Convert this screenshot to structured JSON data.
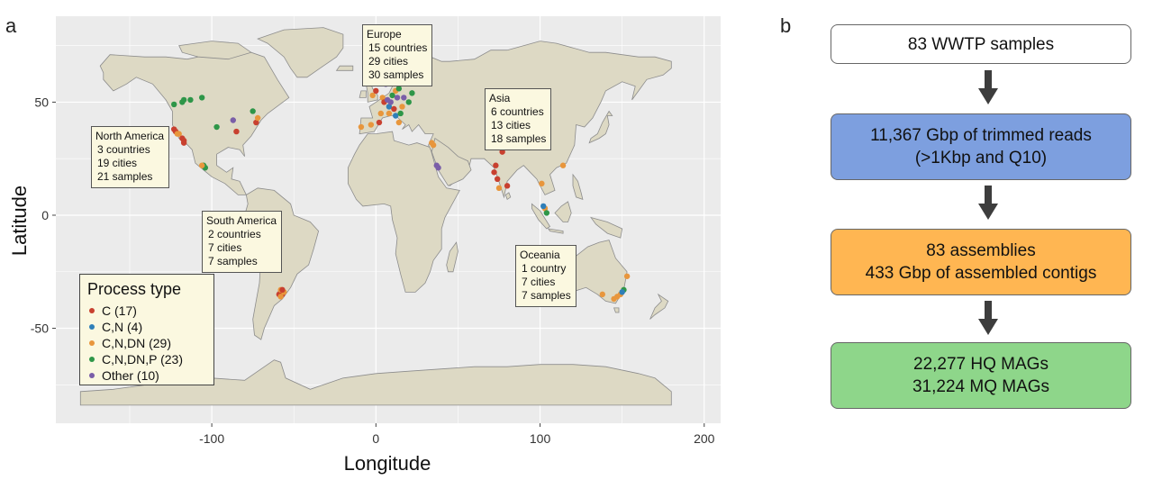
{
  "panel_a_label": "a",
  "panel_b_label": "b",
  "chart_data": [
    {
      "type": "scatter",
      "title": "",
      "xlabel": "Longitude",
      "ylabel": "Latitude",
      "xlim": [
        -195,
        210
      ],
      "ylim": [
        -92,
        88
      ],
      "x_ticks": [
        -100,
        0,
        100,
        200
      ],
      "y_ticks": [
        -50,
        0,
        50
      ],
      "x_tick_labels": [
        "-100",
        "0",
        "100",
        "200"
      ],
      "y_tick_labels": [
        "-50",
        "0",
        "50"
      ],
      "background": "#ebebeb",
      "land_color": "#ddd9c4",
      "grid": true,
      "legend": {
        "title": "Process type",
        "placement": "bottom-left",
        "entries": [
          {
            "key": "C",
            "label": "C (17)",
            "color": "#c8402f"
          },
          {
            "key": "CN",
            "label": "C,N (4)",
            "color": "#2f7fb9"
          },
          {
            "key": "CNDN",
            "label": "C,N,DN (29)",
            "color": "#e8963c"
          },
          {
            "key": "CNDNP",
            "label": "C,N,DN,P (23)",
            "color": "#2e9648"
          },
          {
            "key": "Other",
            "label": "Other (10)",
            "color": "#7a5ea8"
          }
        ]
      },
      "annotations": [
        {
          "region": "Europe",
          "lines": [
            "15 countries",
            "29 cities",
            "30 samples"
          ]
        },
        {
          "region": "Asia",
          "lines": [
            "6 countries",
            "13 cities",
            "18 samples"
          ]
        },
        {
          "region": "North America",
          "lines": [
            "3 countries",
            "19 cities",
            "21 samples"
          ]
        },
        {
          "region": "South America",
          "lines": [
            "2 countries",
            "7 cities",
            "7 samples"
          ]
        },
        {
          "region": "Oceania",
          "lines": [
            "1 country",
            "7 cities",
            "7 samples"
          ]
        }
      ],
      "points": [
        {
          "lon": -123,
          "lat": 49,
          "type": "CNDNP"
        },
        {
          "lon": -118,
          "lat": 50,
          "type": "CNDNP"
        },
        {
          "lon": -117,
          "lat": 51,
          "type": "CNDNP"
        },
        {
          "lon": -113,
          "lat": 51,
          "type": "CNDNP"
        },
        {
          "lon": -106,
          "lat": 52,
          "type": "CNDNP"
        },
        {
          "lon": -97,
          "lat": 39,
          "type": "CNDNP"
        },
        {
          "lon": -123,
          "lat": 38,
          "type": "C"
        },
        {
          "lon": -122,
          "lat": 37,
          "type": "C"
        },
        {
          "lon": -121,
          "lat": 36,
          "type": "CNDN"
        },
        {
          "lon": -120,
          "lat": 36,
          "type": "CNDN"
        },
        {
          "lon": -118,
          "lat": 34,
          "type": "C"
        },
        {
          "lon": -117,
          "lat": 33,
          "type": "C"
        },
        {
          "lon": -117,
          "lat": 32,
          "type": "C"
        },
        {
          "lon": -87,
          "lat": 42,
          "type": "Other"
        },
        {
          "lon": -85,
          "lat": 37,
          "type": "C"
        },
        {
          "lon": -75,
          "lat": 46,
          "type": "CNDNP"
        },
        {
          "lon": -73,
          "lat": 41,
          "type": "C"
        },
        {
          "lon": -72,
          "lat": 43,
          "type": "CNDN"
        },
        {
          "lon": -105,
          "lat": 22,
          "type": "CNDNP"
        },
        {
          "lon": -104,
          "lat": 21,
          "type": "CNDNP"
        },
        {
          "lon": -106,
          "lat": 22,
          "type": "CNDN"
        },
        {
          "lon": -58,
          "lat": -34,
          "type": "C"
        },
        {
          "lon": -57,
          "lat": -35,
          "type": "C"
        },
        {
          "lon": -59,
          "lat": -35,
          "type": "C"
        },
        {
          "lon": -56,
          "lat": -34,
          "type": "CNDN"
        },
        {
          "lon": -58,
          "lat": -33,
          "type": "CNDN"
        },
        {
          "lon": -57,
          "lat": -33,
          "type": "C"
        },
        {
          "lon": -58,
          "lat": -36,
          "type": "CNDN"
        },
        {
          "lon": -9,
          "lat": 39,
          "type": "CNDN"
        },
        {
          "lon": -3,
          "lat": 40,
          "type": "CNDN"
        },
        {
          "lon": 2,
          "lat": 41,
          "type": "C"
        },
        {
          "lon": 3,
          "lat": 45,
          "type": "CNDN"
        },
        {
          "lon": -2,
          "lat": 53,
          "type": "CNDN"
        },
        {
          "lon": 0,
          "lat": 55,
          "type": "C"
        },
        {
          "lon": 4,
          "lat": 52,
          "type": "CNDN"
        },
        {
          "lon": 5,
          "lat": 50,
          "type": "C"
        },
        {
          "lon": 7,
          "lat": 51,
          "type": "Other"
        },
        {
          "lon": 8,
          "lat": 48,
          "type": "CN"
        },
        {
          "lon": 9,
          "lat": 50,
          "type": "Other"
        },
        {
          "lon": 10,
          "lat": 53,
          "type": "CNDNP"
        },
        {
          "lon": 11,
          "lat": 47,
          "type": "C"
        },
        {
          "lon": 12,
          "lat": 55,
          "type": "CNDN"
        },
        {
          "lon": 13,
          "lat": 52,
          "type": "Other"
        },
        {
          "lon": 14,
          "lat": 56,
          "type": "CNDNP"
        },
        {
          "lon": 16,
          "lat": 48,
          "type": "CNDN"
        },
        {
          "lon": 18,
          "lat": 59,
          "type": "CNDN"
        },
        {
          "lon": 10,
          "lat": 63,
          "type": "CNDN"
        },
        {
          "lon": 20,
          "lat": 50,
          "type": "CNDNP"
        },
        {
          "lon": 24,
          "lat": 60,
          "type": "Other"
        },
        {
          "lon": 12,
          "lat": 44,
          "type": "CN"
        },
        {
          "lon": 14,
          "lat": 41,
          "type": "CNDN"
        },
        {
          "lon": 8,
          "lat": 45,
          "type": "CNDN"
        },
        {
          "lon": 15,
          "lat": 45,
          "type": "CNDNP"
        },
        {
          "lon": 6,
          "lat": 58,
          "type": "Other"
        },
        {
          "lon": 22,
          "lat": 54,
          "type": "CNDNP"
        },
        {
          "lon": 11,
          "lat": 59,
          "type": "Other"
        },
        {
          "lon": 17,
          "lat": 52,
          "type": "Other"
        },
        {
          "lon": 34,
          "lat": 32,
          "type": "CNDN"
        },
        {
          "lon": 35,
          "lat": 31,
          "type": "CNDN"
        },
        {
          "lon": 37,
          "lat": 22,
          "type": "Other"
        },
        {
          "lon": 38,
          "lat": 21,
          "type": "Other"
        },
        {
          "lon": 73,
          "lat": 22,
          "type": "C"
        },
        {
          "lon": 77,
          "lat": 28,
          "type": "C"
        },
        {
          "lon": 72,
          "lat": 19,
          "type": "C"
        },
        {
          "lon": 74,
          "lat": 16,
          "type": "C"
        },
        {
          "lon": 80,
          "lat": 13,
          "type": "C"
        },
        {
          "lon": 75,
          "lat": 12,
          "type": "CNDN"
        },
        {
          "lon": 101,
          "lat": 14,
          "type": "CNDN"
        },
        {
          "lon": 114,
          "lat": 22,
          "type": "CNDN"
        },
        {
          "lon": 103,
          "lat": 3,
          "type": "CNDN"
        },
        {
          "lon": 104,
          "lat": 1,
          "type": "CNDNP"
        },
        {
          "lon": 102,
          "lat": 4,
          "type": "CN"
        },
        {
          "lon": 153,
          "lat": -27,
          "type": "CNDN"
        },
        {
          "lon": 151,
          "lat": -33,
          "type": "CNDNP"
        },
        {
          "lon": 149,
          "lat": -35,
          "type": "CNDN"
        },
        {
          "lon": 145,
          "lat": -37,
          "type": "CNDN"
        },
        {
          "lon": 138,
          "lat": -35,
          "type": "CNDN"
        },
        {
          "lon": 150,
          "lat": -34,
          "type": "CN"
        },
        {
          "lon": 147,
          "lat": -36,
          "type": "CNDN"
        }
      ]
    },
    {
      "type": "table",
      "steps": [
        {
          "lines": [
            "83 WWTP samples"
          ],
          "color": "#ffffff"
        },
        {
          "lines": [
            "11,367 Gbp of trimmed reads",
            "(>1Kbp and Q10)"
          ],
          "color": "#7d9fdf"
        },
        {
          "lines": [
            "83 assemblies",
            "433 Gbp of assembled contigs"
          ],
          "color": "#ffb652"
        },
        {
          "lines": [
            "22,277 HQ MAGs",
            "31,224 MQ MAGs"
          ],
          "color": "#8ed68a"
        }
      ]
    }
  ]
}
